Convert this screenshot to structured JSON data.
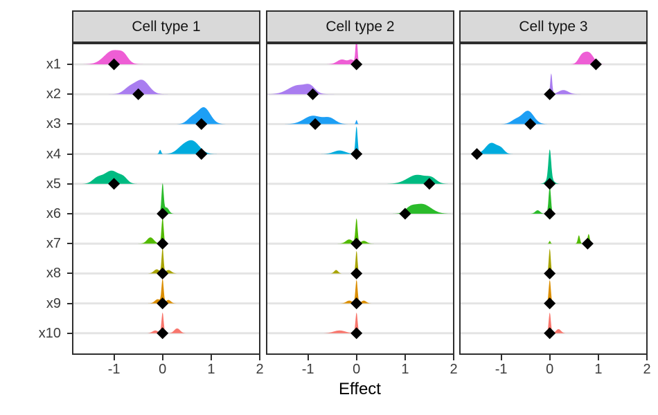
{
  "chart_data": {
    "type": "ridgeline-dot",
    "title": "",
    "xlabel": "Effect",
    "x_ticks": [
      -1,
      0,
      1,
      2
    ],
    "x_range": [
      -1.85,
      2
    ],
    "y_categories": [
      "x1",
      "x2",
      "x3",
      "x4",
      "x5",
      "x6",
      "x7",
      "x8",
      "x9",
      "x10"
    ],
    "legend": "none",
    "grid": "horizontal-only",
    "variable_colors": {
      "x1": "#EE5ED5",
      "x2": "#A97DF0",
      "x3": "#1D9FF5",
      "x4": "#00ABDE",
      "x5": "#00BB82",
      "x6": "#2BBB2B",
      "x7": "#52BA00",
      "x8": "#A8A400",
      "x9": "#DB8E00",
      "x10": "#F8766D"
    },
    "facets": [
      {
        "label": "Cell type 1",
        "rows": [
          {
            "var": "x1",
            "point": -1.0,
            "bumps": [
              [
                -1.02,
                0.18,
                20
              ],
              [
                -0.8,
                0.09,
                8
              ]
            ]
          },
          {
            "var": "x2",
            "point": -0.5,
            "bumps": [
              [
                -0.42,
                0.14,
                20
              ],
              [
                -0.68,
                0.12,
                9
              ]
            ]
          },
          {
            "var": "x3",
            "point": 0.8,
            "bumps": [
              [
                0.85,
                0.13,
                24
              ],
              [
                0.6,
                0.1,
                8
              ]
            ]
          },
          {
            "var": "x4",
            "point": 0.8,
            "bumps": [
              [
                0.62,
                0.14,
                18
              ],
              [
                0.4,
                0.12,
                8
              ],
              [
                -0.05,
                0.02,
                6
              ]
            ]
          },
          {
            "var": "x5",
            "point": -1.0,
            "bumps": [
              [
                -1.05,
                0.16,
                19
              ],
              [
                -1.35,
                0.1,
                7
              ],
              [
                -0.8,
                0.08,
                6
              ]
            ]
          },
          {
            "var": "x6",
            "point": 0.0,
            "bumps": [
              [
                0.0,
                0.022,
                42
              ],
              [
                0.08,
                0.05,
                9
              ]
            ]
          },
          {
            "var": "x7",
            "point": 0.0,
            "bumps": [
              [
                0.0,
                0.022,
                38
              ],
              [
                -0.25,
                0.07,
                9
              ]
            ]
          },
          {
            "var": "x8",
            "point": 0.0,
            "bumps": [
              [
                0.0,
                0.02,
                36
              ],
              [
                -0.12,
                0.06,
                6
              ],
              [
                0.12,
                0.06,
                5
              ]
            ]
          },
          {
            "var": "x9",
            "point": 0.0,
            "bumps": [
              [
                0.0,
                0.022,
                34
              ],
              [
                -0.1,
                0.06,
                6
              ],
              [
                0.12,
                0.05,
                5
              ]
            ]
          },
          {
            "var": "x10",
            "point": 0.0,
            "bumps": [
              [
                0.0,
                0.022,
                30
              ],
              [
                0.3,
                0.06,
                7
              ],
              [
                -0.15,
                0.06,
                4
              ]
            ]
          }
        ]
      },
      {
        "label": "Cell type 2",
        "rows": [
          {
            "var": "x1",
            "point": 0.0,
            "bumps": [
              [
                0.0,
                0.02,
                40
              ],
              [
                -0.3,
                0.1,
                7
              ],
              [
                -0.1,
                0.06,
                6
              ]
            ]
          },
          {
            "var": "x2",
            "point": -0.9,
            "bumps": [
              [
                -1.2,
                0.2,
                13
              ],
              [
                -0.95,
                0.1,
                8
              ]
            ]
          },
          {
            "var": "x3",
            "point": -0.85,
            "bumps": [
              [
                -0.9,
                0.18,
                12
              ],
              [
                -0.55,
                0.12,
                8
              ],
              [
                0.0,
                0.015,
                6
              ]
            ]
          },
          {
            "var": "x4",
            "point": 0.0,
            "bumps": [
              [
                0.0,
                0.022,
                40
              ],
              [
                -0.35,
                0.12,
                5
              ]
            ]
          },
          {
            "var": "x5",
            "point": 1.5,
            "bumps": [
              [
                1.25,
                0.2,
                13
              ],
              [
                1.55,
                0.1,
                6
              ]
            ]
          },
          {
            "var": "x6",
            "point": 1.0,
            "bumps": [
              [
                1.35,
                0.18,
                14
              ],
              [
                1.1,
                0.1,
                6
              ]
            ]
          },
          {
            "var": "x7",
            "point": 0.0,
            "bumps": [
              [
                0.0,
                0.022,
                36
              ],
              [
                -0.15,
                0.07,
                6
              ],
              [
                0.15,
                0.06,
                4
              ]
            ]
          },
          {
            "var": "x8",
            "point": 0.0,
            "bumps": [
              [
                0.0,
                0.02,
                33
              ],
              [
                -0.42,
                0.04,
                5
              ]
            ]
          },
          {
            "var": "x9",
            "point": 0.0,
            "bumps": [
              [
                0.0,
                0.022,
                34
              ],
              [
                -0.15,
                0.06,
                4
              ],
              [
                0.15,
                0.05,
                4
              ]
            ]
          },
          {
            "var": "x10",
            "point": 0.0,
            "bumps": [
              [
                0.0,
                0.022,
                30
              ],
              [
                -0.35,
                0.12,
                4
              ]
            ]
          }
        ]
      },
      {
        "label": "Cell type 3",
        "rows": [
          {
            "var": "x1",
            "point": 0.95,
            "bumps": [
              [
                0.8,
                0.1,
                17
              ],
              [
                0.65,
                0.07,
                9
              ]
            ]
          },
          {
            "var": "x2",
            "point": 0.0,
            "bumps": [
              [
                0.03,
                0.02,
                30
              ],
              [
                0.28,
                0.1,
                6
              ]
            ]
          },
          {
            "var": "x3",
            "point": -0.4,
            "bumps": [
              [
                -0.45,
                0.12,
                19
              ],
              [
                -0.7,
                0.1,
                6
              ]
            ]
          },
          {
            "var": "x4",
            "point": -1.5,
            "bumps": [
              [
                -1.2,
                0.12,
                16
              ],
              [
                -1.0,
                0.07,
                6
              ]
            ]
          },
          {
            "var": "x5",
            "point": 0.0,
            "bumps": [
              [
                0.0,
                0.028,
                42
              ],
              [
                0.0,
                0.07,
                8
              ]
            ]
          },
          {
            "var": "x6",
            "point": 0.0,
            "bumps": [
              [
                0.0,
                0.024,
                40
              ],
              [
                -0.25,
                0.05,
                5
              ]
            ]
          },
          {
            "var": "x7",
            "point": 0.78,
            "bumps": [
              [
                0.6,
                0.022,
                12
              ],
              [
                0.8,
                0.022,
                14
              ],
              [
                0.0,
                0.015,
                4
              ]
            ]
          },
          {
            "var": "x8",
            "point": 0.0,
            "bumps": [
              [
                0.0,
                0.02,
                36
              ]
            ]
          },
          {
            "var": "x9",
            "point": 0.0,
            "bumps": [
              [
                0.0,
                0.022,
                34
              ]
            ]
          },
          {
            "var": "x10",
            "point": 0.0,
            "bumps": [
              [
                0.0,
                0.022,
                30
              ],
              [
                0.18,
                0.05,
                6
              ]
            ]
          }
        ]
      }
    ],
    "style": {
      "grid_color": "#E4E4E4",
      "panel_border": "#2E2E2E",
      "strip_bg": "#D9D9D9",
      "axis_text": "#3C3C3C",
      "point_color": "#000000",
      "background": "#FFFFFF"
    }
  }
}
